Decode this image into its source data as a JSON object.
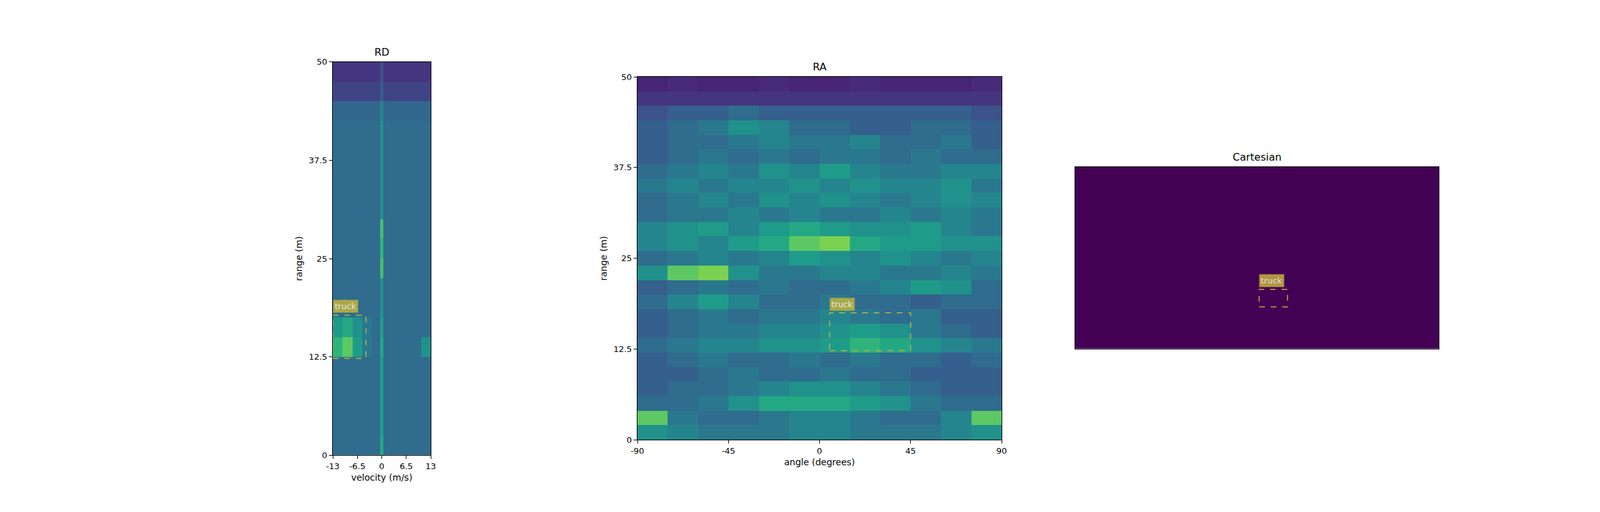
{
  "chart_data": [
    {
      "type": "heatmap",
      "title": "RD",
      "x_label": "velocity (m/s)",
      "y_label": "range (m)",
      "xlim": [
        -13,
        13
      ],
      "ylim": [
        0,
        50
      ],
      "xticks": [
        -13,
        -6.5,
        0,
        6.5,
        13
      ],
      "yticks": [
        0,
        12.5,
        25,
        37.5,
        50
      ],
      "color": "Viridis",
      "zlim": [
        0,
        1
      ],
      "x": [
        -13,
        -10.4,
        -7.8,
        -5.2,
        -2.6,
        -0.4,
        0.4,
        2.6,
        5.2,
        7.8,
        10.4,
        13
      ],
      "y": [
        0,
        2.5,
        5,
        7.5,
        10,
        12.5,
        15,
        17.5,
        20,
        22.5,
        25,
        27.5,
        30,
        32.5,
        35,
        37.5,
        40,
        42.5,
        45,
        47.5,
        50
      ],
      "z": [
        [
          0.35,
          0.35,
          0.35,
          0.35,
          0.35,
          0.6,
          0.35,
          0.35,
          0.35,
          0.35,
          0.35
        ],
        [
          0.35,
          0.35,
          0.35,
          0.35,
          0.35,
          0.55,
          0.35,
          0.35,
          0.35,
          0.35,
          0.35
        ],
        [
          0.35,
          0.35,
          0.35,
          0.35,
          0.35,
          0.55,
          0.35,
          0.35,
          0.35,
          0.35,
          0.35
        ],
        [
          0.35,
          0.35,
          0.35,
          0.35,
          0.35,
          0.55,
          0.35,
          0.35,
          0.35,
          0.35,
          0.35
        ],
        [
          0.35,
          0.35,
          0.35,
          0.35,
          0.35,
          0.55,
          0.35,
          0.35,
          0.35,
          0.35,
          0.35
        ],
        [
          0.65,
          0.75,
          0.55,
          0.4,
          0.35,
          0.6,
          0.35,
          0.35,
          0.35,
          0.35,
          0.5
        ],
        [
          0.55,
          0.6,
          0.5,
          0.4,
          0.35,
          0.55,
          0.35,
          0.35,
          0.35,
          0.35,
          0.35
        ],
        [
          0.35,
          0.35,
          0.35,
          0.35,
          0.35,
          0.5,
          0.35,
          0.35,
          0.35,
          0.35,
          0.35
        ],
        [
          0.35,
          0.35,
          0.35,
          0.35,
          0.35,
          0.5,
          0.35,
          0.35,
          0.35,
          0.35,
          0.35
        ],
        [
          0.35,
          0.35,
          0.35,
          0.35,
          0.35,
          0.7,
          0.35,
          0.35,
          0.35,
          0.35,
          0.35
        ],
        [
          0.35,
          0.35,
          0.35,
          0.35,
          0.35,
          0.65,
          0.35,
          0.35,
          0.35,
          0.35,
          0.35
        ],
        [
          0.35,
          0.35,
          0.35,
          0.35,
          0.35,
          0.7,
          0.35,
          0.35,
          0.35,
          0.35,
          0.35
        ],
        [
          0.35,
          0.35,
          0.35,
          0.35,
          0.35,
          0.5,
          0.35,
          0.35,
          0.35,
          0.35,
          0.35
        ],
        [
          0.35,
          0.35,
          0.35,
          0.35,
          0.35,
          0.5,
          0.35,
          0.35,
          0.35,
          0.35,
          0.35
        ],
        [
          0.35,
          0.35,
          0.35,
          0.35,
          0.35,
          0.5,
          0.35,
          0.35,
          0.35,
          0.35,
          0.35
        ],
        [
          0.35,
          0.35,
          0.35,
          0.35,
          0.35,
          0.5,
          0.35,
          0.35,
          0.35,
          0.35,
          0.35
        ],
        [
          0.35,
          0.35,
          0.35,
          0.35,
          0.35,
          0.5,
          0.35,
          0.35,
          0.35,
          0.35,
          0.35
        ],
        [
          0.33,
          0.33,
          0.33,
          0.33,
          0.33,
          0.45,
          0.33,
          0.33,
          0.33,
          0.33,
          0.33
        ],
        [
          0.2,
          0.2,
          0.2,
          0.2,
          0.2,
          0.3,
          0.2,
          0.2,
          0.2,
          0.2,
          0.2
        ],
        [
          0.15,
          0.15,
          0.15,
          0.15,
          0.15,
          0.25,
          0.15,
          0.15,
          0.15,
          0.15,
          0.15
        ]
      ],
      "boxes": [
        {
          "label": "truck",
          "x": [
            -13,
            -4.2
          ],
          "y": [
            12.3,
            17.8
          ],
          "color": "#c2b23c"
        }
      ]
    },
    {
      "type": "heatmap",
      "title": "RA",
      "x_label": "angle (degrees)",
      "y_label": "range (m)",
      "xlim": [
        -90,
        90
      ],
      "ylim": [
        0,
        50
      ],
      "xticks": [
        -90,
        -45,
        0,
        45,
        90
      ],
      "yticks": [
        0,
        12.5,
        25,
        37.5,
        50
      ],
      "color": "Viridis",
      "zlim": [
        0,
        1
      ],
      "x": [
        -90,
        -75,
        -60,
        -45,
        -30,
        -15,
        0,
        15,
        30,
        45,
        60,
        75,
        90
      ],
      "y": [
        0,
        2,
        4,
        6,
        8,
        10,
        12,
        14,
        16,
        18,
        20,
        22,
        24,
        26,
        28,
        30,
        32,
        34,
        36,
        38,
        40,
        42,
        44,
        46,
        48,
        50
      ],
      "z": [
        [
          0.5,
          0.45,
          0.4,
          0.4,
          0.4,
          0.45,
          0.45,
          0.4,
          0.4,
          0.4,
          0.45,
          0.5
        ],
        [
          0.75,
          0.4,
          0.35,
          0.35,
          0.4,
          0.45,
          0.45,
          0.4,
          0.35,
          0.35,
          0.45,
          0.75
        ],
        [
          0.35,
          0.35,
          0.4,
          0.5,
          0.6,
          0.6,
          0.6,
          0.55,
          0.5,
          0.4,
          0.35,
          0.35
        ],
        [
          0.3,
          0.35,
          0.35,
          0.4,
          0.45,
          0.5,
          0.5,
          0.45,
          0.4,
          0.35,
          0.3,
          0.3
        ],
        [
          0.3,
          0.3,
          0.35,
          0.4,
          0.35,
          0.35,
          0.4,
          0.35,
          0.35,
          0.3,
          0.3,
          0.3
        ],
        [
          0.3,
          0.35,
          0.4,
          0.35,
          0.35,
          0.4,
          0.35,
          0.4,
          0.35,
          0.35,
          0.3,
          0.35
        ],
        [
          0.35,
          0.4,
          0.45,
          0.45,
          0.5,
          0.5,
          0.55,
          0.65,
          0.6,
          0.5,
          0.45,
          0.4
        ],
        [
          0.3,
          0.35,
          0.4,
          0.4,
          0.45,
          0.45,
          0.5,
          0.55,
          0.5,
          0.4,
          0.35,
          0.3
        ],
        [
          0.3,
          0.35,
          0.4,
          0.35,
          0.4,
          0.4,
          0.45,
          0.4,
          0.35,
          0.4,
          0.3,
          0.3
        ],
        [
          0.35,
          0.45,
          0.55,
          0.45,
          0.35,
          0.35,
          0.4,
          0.35,
          0.35,
          0.3,
          0.35,
          0.35
        ],
        [
          0.3,
          0.35,
          0.4,
          0.35,
          0.4,
          0.35,
          0.35,
          0.4,
          0.45,
          0.55,
          0.5,
          0.35
        ],
        [
          0.5,
          0.75,
          0.8,
          0.5,
          0.4,
          0.4,
          0.45,
          0.45,
          0.4,
          0.4,
          0.45,
          0.4
        ],
        [
          0.35,
          0.4,
          0.45,
          0.4,
          0.45,
          0.55,
          0.5,
          0.45,
          0.5,
          0.45,
          0.4,
          0.45
        ],
        [
          0.45,
          0.5,
          0.45,
          0.55,
          0.6,
          0.75,
          0.8,
          0.6,
          0.55,
          0.55,
          0.5,
          0.5
        ],
        [
          0.45,
          0.5,
          0.55,
          0.45,
          0.55,
          0.6,
          0.55,
          0.5,
          0.5,
          0.55,
          0.45,
          0.4
        ],
        [
          0.35,
          0.4,
          0.4,
          0.45,
          0.4,
          0.45,
          0.4,
          0.4,
          0.45,
          0.4,
          0.45,
          0.4
        ],
        [
          0.35,
          0.4,
          0.45,
          0.4,
          0.5,
          0.45,
          0.5,
          0.45,
          0.4,
          0.45,
          0.5,
          0.45
        ],
        [
          0.4,
          0.45,
          0.4,
          0.45,
          0.45,
          0.5,
          0.45,
          0.5,
          0.45,
          0.45,
          0.5,
          0.4
        ],
        [
          0.35,
          0.4,
          0.45,
          0.4,
          0.5,
          0.45,
          0.55,
          0.45,
          0.4,
          0.4,
          0.45,
          0.45
        ],
        [
          0.3,
          0.35,
          0.4,
          0.35,
          0.4,
          0.35,
          0.4,
          0.4,
          0.35,
          0.4,
          0.35,
          0.35
        ],
        [
          0.3,
          0.35,
          0.35,
          0.4,
          0.45,
          0.4,
          0.4,
          0.45,
          0.35,
          0.35,
          0.4,
          0.3
        ],
        [
          0.3,
          0.35,
          0.4,
          0.5,
          0.45,
          0.35,
          0.35,
          0.3,
          0.3,
          0.35,
          0.35,
          0.3
        ],
        [
          0.25,
          0.3,
          0.3,
          0.35,
          0.3,
          0.3,
          0.3,
          0.3,
          0.3,
          0.3,
          0.3,
          0.25
        ],
        [
          0.15,
          0.15,
          0.15,
          0.15,
          0.15,
          0.15,
          0.15,
          0.15,
          0.15,
          0.15,
          0.15,
          0.15
        ],
        [
          0.1,
          0.12,
          0.1,
          0.1,
          0.12,
          0.1,
          0.1,
          0.12,
          0.1,
          0.1,
          0.1,
          0.12
        ]
      ],
      "boxes": [
        {
          "label": "truck",
          "x": [
            5,
            45
          ],
          "y": [
            12.3,
            17.5
          ],
          "color": "#c2b23c"
        }
      ]
    },
    {
      "type": "heatmap",
      "title": "Cartesian",
      "xlim": [
        -50,
        50
      ],
      "ylim": [
        0,
        50
      ],
      "tick_labels": false,
      "color": "Viridis",
      "zlim": [
        0,
        1
      ],
      "x": [
        -50,
        50
      ],
      "y": [
        0,
        50
      ],
      "z": [
        [
          0
        ]
      ],
      "boxes": [
        {
          "label": "truck",
          "x": [
            0.6,
            8.4
          ],
          "y": [
            11.5,
            16.3
          ],
          "color": "#c2b23c"
        }
      ]
    }
  ]
}
